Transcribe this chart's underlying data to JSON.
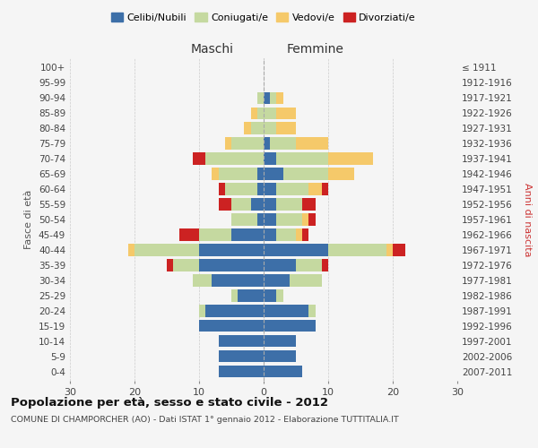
{
  "age_groups": [
    "100+",
    "95-99",
    "90-94",
    "85-89",
    "80-84",
    "75-79",
    "70-74",
    "65-69",
    "60-64",
    "55-59",
    "50-54",
    "45-49",
    "40-44",
    "35-39",
    "30-34",
    "25-29",
    "20-24",
    "15-19",
    "10-14",
    "5-9",
    "0-4"
  ],
  "birth_years": [
    "≤ 1911",
    "1912-1916",
    "1917-1921",
    "1922-1926",
    "1927-1931",
    "1932-1936",
    "1937-1941",
    "1942-1946",
    "1947-1951",
    "1952-1956",
    "1957-1961",
    "1962-1966",
    "1967-1971",
    "1972-1976",
    "1977-1981",
    "1982-1986",
    "1987-1991",
    "1992-1996",
    "1997-2001",
    "2002-2006",
    "2007-2011"
  ],
  "male": {
    "celibi": [
      0,
      0,
      0,
      0,
      0,
      0,
      0,
      1,
      1,
      2,
      1,
      5,
      10,
      10,
      8,
      4,
      9,
      10,
      7,
      7,
      7
    ],
    "coniugati": [
      0,
      0,
      1,
      1,
      2,
      5,
      9,
      6,
      5,
      3,
      4,
      5,
      10,
      4,
      3,
      1,
      1,
      0,
      0,
      0,
      0
    ],
    "vedovi": [
      0,
      0,
      0,
      1,
      1,
      1,
      0,
      1,
      0,
      0,
      0,
      0,
      1,
      0,
      0,
      0,
      0,
      0,
      0,
      0,
      0
    ],
    "divorziati": [
      0,
      0,
      0,
      0,
      0,
      0,
      2,
      0,
      1,
      2,
      0,
      3,
      0,
      1,
      0,
      0,
      0,
      0,
      0,
      0,
      0
    ]
  },
  "female": {
    "nubili": [
      0,
      0,
      1,
      0,
      0,
      1,
      2,
      3,
      2,
      2,
      2,
      2,
      10,
      5,
      4,
      2,
      7,
      8,
      5,
      5,
      6
    ],
    "coniugate": [
      0,
      0,
      1,
      2,
      2,
      4,
      8,
      7,
      5,
      4,
      4,
      3,
      9,
      4,
      5,
      1,
      1,
      0,
      0,
      0,
      0
    ],
    "vedove": [
      0,
      0,
      1,
      3,
      3,
      5,
      7,
      4,
      2,
      0,
      1,
      1,
      1,
      0,
      0,
      0,
      0,
      0,
      0,
      0,
      0
    ],
    "divorziate": [
      0,
      0,
      0,
      0,
      0,
      0,
      0,
      0,
      1,
      2,
      1,
      1,
      2,
      1,
      0,
      0,
      0,
      0,
      0,
      0,
      0
    ]
  },
  "colors": {
    "celibi": "#3d6fa8",
    "coniugati": "#c5d9a0",
    "vedovi": "#f5c96a",
    "divorziati": "#cc2222"
  },
  "xlim": 30,
  "title": "Popolazione per età, sesso e stato civile - 2012",
  "subtitle": "COMUNE DI CHAMPORCHER (AO) - Dati ISTAT 1° gennaio 2012 - Elaborazione TUTTITALIA.IT",
  "ylabel_left": "Fasce di età",
  "ylabel_right": "Anni di nascita",
  "xlabel_male": "Maschi",
  "xlabel_female": "Femmine",
  "bg_color": "#f5f5f5",
  "grid_color": "#cccccc"
}
